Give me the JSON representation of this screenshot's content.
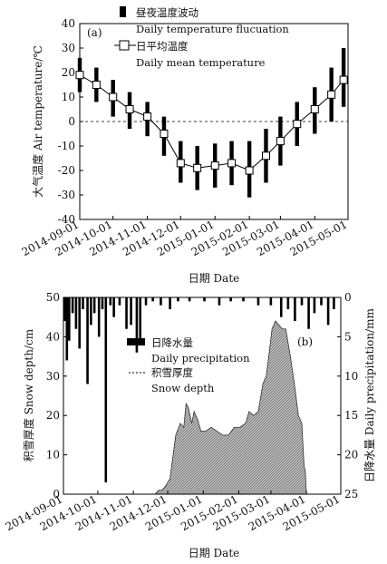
{
  "chart_data": [
    {
      "type": "line",
      "panel_label": "(a)",
      "xlabel": "日期 Date",
      "ylabel": "大气温度 Air temperature/℃",
      "ylim": [
        -40,
        40
      ],
      "yticks": [
        -40,
        -30,
        -20,
        -10,
        0,
        10,
        20,
        30,
        40
      ],
      "xticks": [
        "2014-09-01",
        "2014-10-01",
        "2014-11-01",
        "2014-12-01",
        "2015-01-01",
        "2015-02-01",
        "2015-03-01",
        "2015-04-01",
        "2015-05-01"
      ],
      "zero_line": "dashed",
      "legend_position": "top-left",
      "series": [
        {
          "name": "昼夜温度波动 Daily temperature flucuation",
          "legend_cn": "昼夜温度波动",
          "legend_en": "Daily temperature flucuation",
          "style": "vertical black bars (daily min–max)",
          "data": [
            {
              "x": "2014-09-01",
              "low": 12,
              "high": 26
            },
            {
              "x": "2014-09-16",
              "low": 8,
              "high": 22
            },
            {
              "x": "2014-10-01",
              "low": 2,
              "high": 17
            },
            {
              "x": "2014-10-16",
              "low": -3,
              "high": 12
            },
            {
              "x": "2014-11-01",
              "low": -6,
              "high": 8
            },
            {
              "x": "2014-11-16",
              "low": -14,
              "high": 2
            },
            {
              "x": "2014-12-01",
              "low": -25,
              "high": -8
            },
            {
              "x": "2014-12-16",
              "low": -28,
              "high": -10
            },
            {
              "x": "2015-01-01",
              "low": -27,
              "high": -9
            },
            {
              "x": "2015-01-16",
              "low": -26,
              "high": -8
            },
            {
              "x": "2015-02-01",
              "low": -31,
              "high": -8
            },
            {
              "x": "2015-02-16",
              "low": -25,
              "high": -3
            },
            {
              "x": "2015-03-01",
              "low": -18,
              "high": 2
            },
            {
              "x": "2015-03-16",
              "low": -10,
              "high": 8
            },
            {
              "x": "2015-04-01",
              "low": -5,
              "high": 14
            },
            {
              "x": "2015-04-16",
              "low": 0,
              "high": 22
            },
            {
              "x": "2015-04-27",
              "low": 6,
              "high": 30
            }
          ]
        },
        {
          "name": "日平均温度 Daily mean temperature",
          "legend_cn": "日平均温度",
          "legend_en": "Daily mean temperature",
          "style": "open square markers",
          "x": [
            "2014-09-01",
            "2014-09-16",
            "2014-10-01",
            "2014-10-16",
            "2014-11-01",
            "2014-11-16",
            "2014-12-01",
            "2014-12-16",
            "2015-01-01",
            "2015-01-16",
            "2015-02-01",
            "2015-02-16",
            "2015-03-01",
            "2015-03-16",
            "2015-04-01",
            "2015-04-16",
            "2015-04-27"
          ],
          "values": [
            19,
            15,
            10,
            5,
            2,
            -5,
            -17,
            -19,
            -18,
            -17,
            -20,
            -14,
            -8,
            -1,
            5,
            11,
            17
          ]
        }
      ]
    },
    {
      "type": "area",
      "panel_label": "(b)",
      "xlabel": "日期 Date",
      "ylabel_left": "积雪厚度 Snow depth/cm",
      "ylabel_right": "日降水量 Daily precipitation/mm",
      "ylim_left": [
        0,
        50
      ],
      "ylim_right": [
        25,
        0
      ],
      "yticks_left": [
        0,
        10,
        20,
        30,
        40,
        50
      ],
      "yticks_right": [
        0,
        5,
        10,
        15,
        20,
        25
      ],
      "xticks": [
        "2014-09-01",
        "2014-10-01",
        "2014-11-01",
        "2014-12-01",
        "2015-01-01",
        "2015-02-01",
        "2015-03-01",
        "2015-04-01",
        "2015-05-01"
      ],
      "legend_position": "center",
      "series": [
        {
          "name": "日降水量 Daily precipitation",
          "legend_cn": "日降水量",
          "legend_en": "Daily precipitation",
          "axis": "right (inverted)",
          "style": "bars hanging from top",
          "data": [
            {
              "x": "2014-09-02",
              "value": 3.0
            },
            {
              "x": "2014-09-04",
              "value": 8.0
            },
            {
              "x": "2014-09-06",
              "value": 5.5
            },
            {
              "x": "2014-09-09",
              "value": 2.0
            },
            {
              "x": "2014-09-12",
              "value": 4.0
            },
            {
              "x": "2014-09-15",
              "value": 6.5
            },
            {
              "x": "2014-09-18",
              "value": 1.5
            },
            {
              "x": "2014-09-22",
              "value": 11.0
            },
            {
              "x": "2014-09-25",
              "value": 3.5
            },
            {
              "x": "2014-09-28",
              "value": 2.0
            },
            {
              "x": "2014-10-02",
              "value": 5.0
            },
            {
              "x": "2014-10-05",
              "value": 1.5
            },
            {
              "x": "2014-10-08",
              "value": 23.5
            },
            {
              "x": "2014-10-12",
              "value": 1.0
            },
            {
              "x": "2014-10-15",
              "value": 2.5
            },
            {
              "x": "2014-10-20",
              "value": 1.0
            },
            {
              "x": "2014-10-26",
              "value": 4.0
            },
            {
              "x": "2014-10-30",
              "value": 3.5
            },
            {
              "x": "2014-11-04",
              "value": 7.0
            },
            {
              "x": "2014-11-07",
              "value": 5.5
            },
            {
              "x": "2014-11-12",
              "value": 1.0
            },
            {
              "x": "2014-11-18",
              "value": 0.5
            },
            {
              "x": "2014-11-25",
              "value": 1.0
            },
            {
              "x": "2014-12-03",
              "value": 1.5
            },
            {
              "x": "2014-12-10",
              "value": 0.5
            },
            {
              "x": "2014-12-20",
              "value": 0.5
            },
            {
              "x": "2015-01-02",
              "value": 0.5
            },
            {
              "x": "2015-01-15",
              "value": 1.0
            },
            {
              "x": "2015-01-25",
              "value": 0.5
            },
            {
              "x": "2015-02-05",
              "value": 0.5
            },
            {
              "x": "2015-02-18",
              "value": 1.0
            },
            {
              "x": "2015-03-01",
              "value": 1.0
            },
            {
              "x": "2015-03-10",
              "value": 2.5
            },
            {
              "x": "2015-03-16",
              "value": 1.5
            },
            {
              "x": "2015-03-22",
              "value": 3.0
            },
            {
              "x": "2015-03-28",
              "value": 1.0
            },
            {
              "x": "2015-04-03",
              "value": 4.0
            },
            {
              "x": "2015-04-08",
              "value": 2.0
            },
            {
              "x": "2015-04-14",
              "value": 1.0
            },
            {
              "x": "2015-04-20",
              "value": 3.5
            },
            {
              "x": "2015-04-25",
              "value": 1.5
            }
          ]
        },
        {
          "name": "积雪厚度 Snow depth",
          "legend_cn": "积雪厚度",
          "legend_en": "Snow depth",
          "axis": "left",
          "style": "hatched grey area",
          "x": [
            "2014-11-20",
            "2014-11-23",
            "2014-11-26",
            "2014-11-29",
            "2014-12-03",
            "2014-12-08",
            "2014-12-12",
            "2014-12-15",
            "2014-12-17",
            "2014-12-19",
            "2014-12-22",
            "2014-12-24",
            "2014-12-27",
            "2014-12-30",
            "2015-01-03",
            "2015-01-08",
            "2015-01-13",
            "2015-01-18",
            "2015-01-23",
            "2015-01-28",
            "2015-02-02",
            "2015-02-07",
            "2015-02-10",
            "2015-02-14",
            "2015-02-18",
            "2015-02-22",
            "2015-02-25",
            "2015-02-28",
            "2015-03-02",
            "2015-03-05",
            "2015-03-08",
            "2015-03-11",
            "2015-03-14",
            "2015-03-18",
            "2015-03-22",
            "2015-03-25",
            "2015-03-28",
            "2015-03-30",
            "2015-03-31",
            "2015-04-01"
          ],
          "values": [
            0,
            1,
            1,
            2,
            4,
            15,
            18,
            17,
            23,
            22,
            18,
            21,
            19,
            16,
            16,
            17,
            16,
            15,
            15,
            17,
            17,
            18,
            21,
            20,
            21,
            28,
            30,
            37,
            42,
            44,
            43,
            42,
            42,
            35,
            27,
            20,
            18,
            7,
            6,
            0
          ]
        }
      ]
    }
  ]
}
